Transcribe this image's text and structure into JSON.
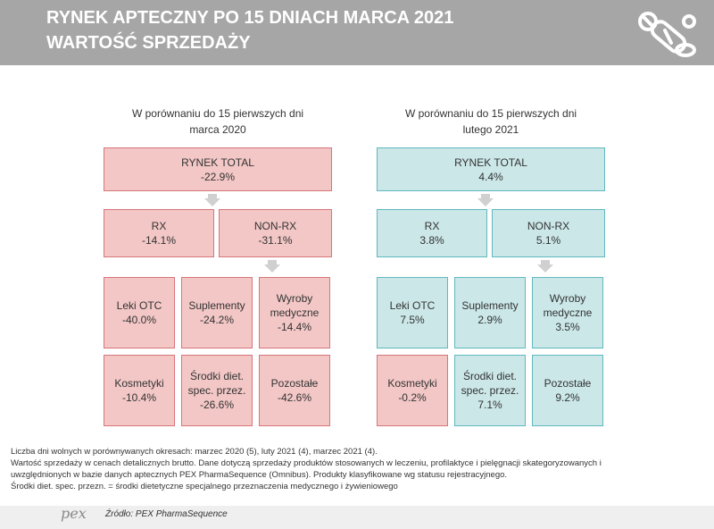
{
  "header": {
    "title_line1": "RYNEK APTECZNY PO 15 DNIACH MARCA 2021",
    "title_line2": "WARTOŚĆ SPRZEDAŻY",
    "logo_icon": "pills-icon"
  },
  "left": {
    "subtitle_line1": "W porównaniu do 15 pierwszych dni",
    "subtitle_line2": "marca 2020",
    "total": {
      "label": "RYNEK TOTAL",
      "value": "-22.9%"
    },
    "rx": {
      "label": "RX",
      "value": "-14.1%"
    },
    "nonrx": {
      "label": "NON-RX",
      "value": "-31.1%"
    },
    "leki": {
      "label": "Leki OTC",
      "value": "-40.0%"
    },
    "suplementy": {
      "label": "Suplementy",
      "value": "-24.2%"
    },
    "wyroby": {
      "label1": "Wyroby",
      "label2": "medyczne",
      "value": "-14.4%"
    },
    "kosmetyki": {
      "label": "Kosmetyki",
      "value": "-10.4%"
    },
    "srodki": {
      "label1": "Środki diet.",
      "label2": "spec. przez.",
      "value": "-26.6%"
    },
    "pozostale": {
      "label": "Pozostałe",
      "value": "-42.6%"
    }
  },
  "right": {
    "subtitle_line1": "W porównaniu do 15 pierwszych dni",
    "subtitle_line2": "lutego 2021",
    "total": {
      "label": "RYNEK TOTAL",
      "value": "4.4%"
    },
    "rx": {
      "label": "RX",
      "value": "3.8%"
    },
    "nonrx": {
      "label": "NON-RX",
      "value": "5.1%"
    },
    "leki": {
      "label": "Leki OTC",
      "value": "7.5%"
    },
    "suplementy": {
      "label": "Suplementy",
      "value": "2.9%"
    },
    "wyroby": {
      "label1": "Wyroby",
      "label2": "medyczne",
      "value": "3.5%"
    },
    "kosmetyki": {
      "label": "Kosmetyki",
      "value": "-0.2%"
    },
    "srodki": {
      "label1": "Środki diet.",
      "label2": "spec. przez.",
      "value": "7.1%"
    },
    "pozostale": {
      "label": "Pozostałe",
      "value": "9.2%"
    }
  },
  "notes": [
    "Liczba dni wolnych w porównywanych okresach: marzec 2020 (5), luty 2021 (4),  marzec 2021 (4).",
    "Wartość sprzedaży w cenach detalicznych brutto. Dane dotyczą sprzedaży produktów stosowanych w leczeniu, profilaktyce i pielęgnacji skategoryzowanych i",
    "uwzględnionych w bazie danych aptecznych PEX PharmaSequence (Omnibus). Produkty klasyfikowane wg statusu rejestracyjnego.",
    "Środki diet. spec. przezn. = środki dietetyczne specjalnego przeznaczenia medycznego i żywieniowego"
  ],
  "footer": {
    "logo_text": "pex",
    "source": "Źródło: PEX PharmaSequence"
  },
  "colors": {
    "header_bg": "#a6a6a6",
    "negative_fill": "#f2c7c6",
    "negative_border": "#d8757a",
    "positive_fill": "#cbe7e8",
    "positive_border": "#5fb8bf"
  }
}
